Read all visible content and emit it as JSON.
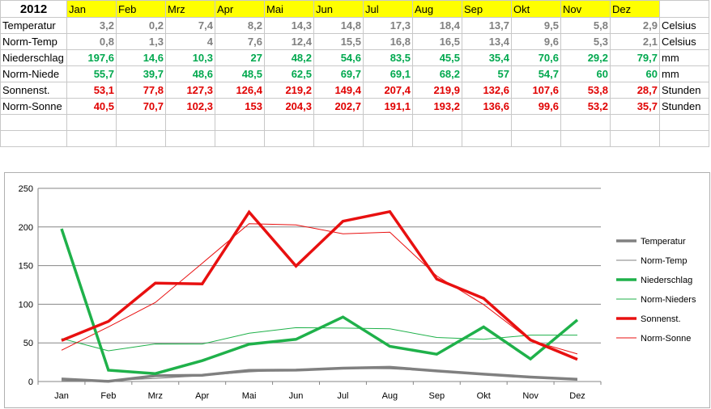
{
  "table": {
    "year": "2012",
    "months": [
      "Jan",
      "Feb",
      "Mrz",
      "Apr",
      "Mai",
      "Jun",
      "Jul",
      "Aug",
      "Sep",
      "Okt",
      "Nov",
      "Dez"
    ],
    "rows": [
      {
        "label": "Temperatur",
        "values": [
          "3,2",
          "0,2",
          "7,4",
          "8,2",
          "14,3",
          "14,8",
          "17,3",
          "18,4",
          "13,7",
          "9,5",
          "5,8",
          "2,9"
        ],
        "unit": "Celsius",
        "color": "#808080"
      },
      {
        "label": "Norm-Temp",
        "values": [
          "0,8",
          "1,3",
          "4",
          "7,6",
          "12,4",
          "15,5",
          "16,8",
          "16,5",
          "13,4",
          "9,6",
          "5,3",
          "2,1"
        ],
        "unit": "Celsius",
        "color": "#808080"
      },
      {
        "label": "Niederschlag",
        "values": [
          "197,6",
          "14,6",
          "10,3",
          "27",
          "48,2",
          "54,6",
          "83,5",
          "45,5",
          "35,4",
          "70,6",
          "29,2",
          "79,7"
        ],
        "unit": "mm",
        "color": "#00a84e"
      },
      {
        "label": "Norm-Niede",
        "values": [
          "55,7",
          "39,7",
          "48,6",
          "48,5",
          "62,5",
          "69,7",
          "69,1",
          "68,2",
          "57",
          "54,7",
          "60",
          "60"
        ],
        "unit": "mm",
        "color": "#00a84e"
      },
      {
        "label": "Sonnenst.",
        "values": [
          "53,1",
          "77,8",
          "127,3",
          "126,4",
          "219,2",
          "149,4",
          "207,4",
          "219,9",
          "132,6",
          "107,6",
          "53,8",
          "28,7"
        ],
        "unit": "Stunden",
        "color": "#e00000"
      },
      {
        "label": "Norm-Sonne",
        "values": [
          "40,5",
          "70,7",
          "102,3",
          "153",
          "204,3",
          "202,7",
          "191,1",
          "193,2",
          "136,6",
          "99,6",
          "53,2",
          "35,7"
        ],
        "unit": "Stunden",
        "color": "#e00000"
      }
    ]
  },
  "chart_data": {
    "type": "line",
    "categories": [
      "Jan",
      "Feb",
      "Mrz",
      "Apr",
      "Mai",
      "Jun",
      "Jul",
      "Aug",
      "Sep",
      "Okt",
      "Nov",
      "Dez"
    ],
    "ylim": [
      0,
      250
    ],
    "yticks": [
      "0",
      "50",
      "100",
      "150",
      "200",
      "250"
    ],
    "grid": true,
    "legend_position": "right",
    "series": [
      {
        "name": "Temperatur",
        "values": [
          3.2,
          0.2,
          7.4,
          8.2,
          14.3,
          14.8,
          17.3,
          18.4,
          13.7,
          9.5,
          5.8,
          2.9
        ],
        "color": "#808080",
        "weight": "thick"
      },
      {
        "name": "Norm-Temp",
        "values": [
          0.8,
          1.3,
          4,
          7.6,
          12.4,
          15.5,
          16.8,
          16.5,
          13.4,
          9.6,
          5.3,
          2.1
        ],
        "color": "#808080",
        "weight": "thin"
      },
      {
        "name": "Niederschlag",
        "values": [
          197.6,
          14.6,
          10.3,
          27,
          48.2,
          54.6,
          83.5,
          45.5,
          35.4,
          70.6,
          29.2,
          79.7
        ],
        "color": "#1fb14a",
        "weight": "thick"
      },
      {
        "name": "Norm-Nieders",
        "values": [
          55.7,
          39.7,
          48.6,
          48.5,
          62.5,
          69.7,
          69.1,
          68.2,
          57,
          54.7,
          60,
          60
        ],
        "color": "#1fb14a",
        "weight": "thin"
      },
      {
        "name": "Sonnenst.",
        "values": [
          53.1,
          77.8,
          127.3,
          126.4,
          219.2,
          149.4,
          207.4,
          219.9,
          132.6,
          107.6,
          53.8,
          28.7
        ],
        "color": "#e81010",
        "weight": "thick"
      },
      {
        "name": "Norm-Sonne",
        "values": [
          40.5,
          70.7,
          102.3,
          153,
          204.3,
          202.7,
          191.1,
          193.2,
          136.6,
          99.6,
          53.2,
          35.7
        ],
        "color": "#e81010",
        "weight": "thin"
      }
    ]
  }
}
